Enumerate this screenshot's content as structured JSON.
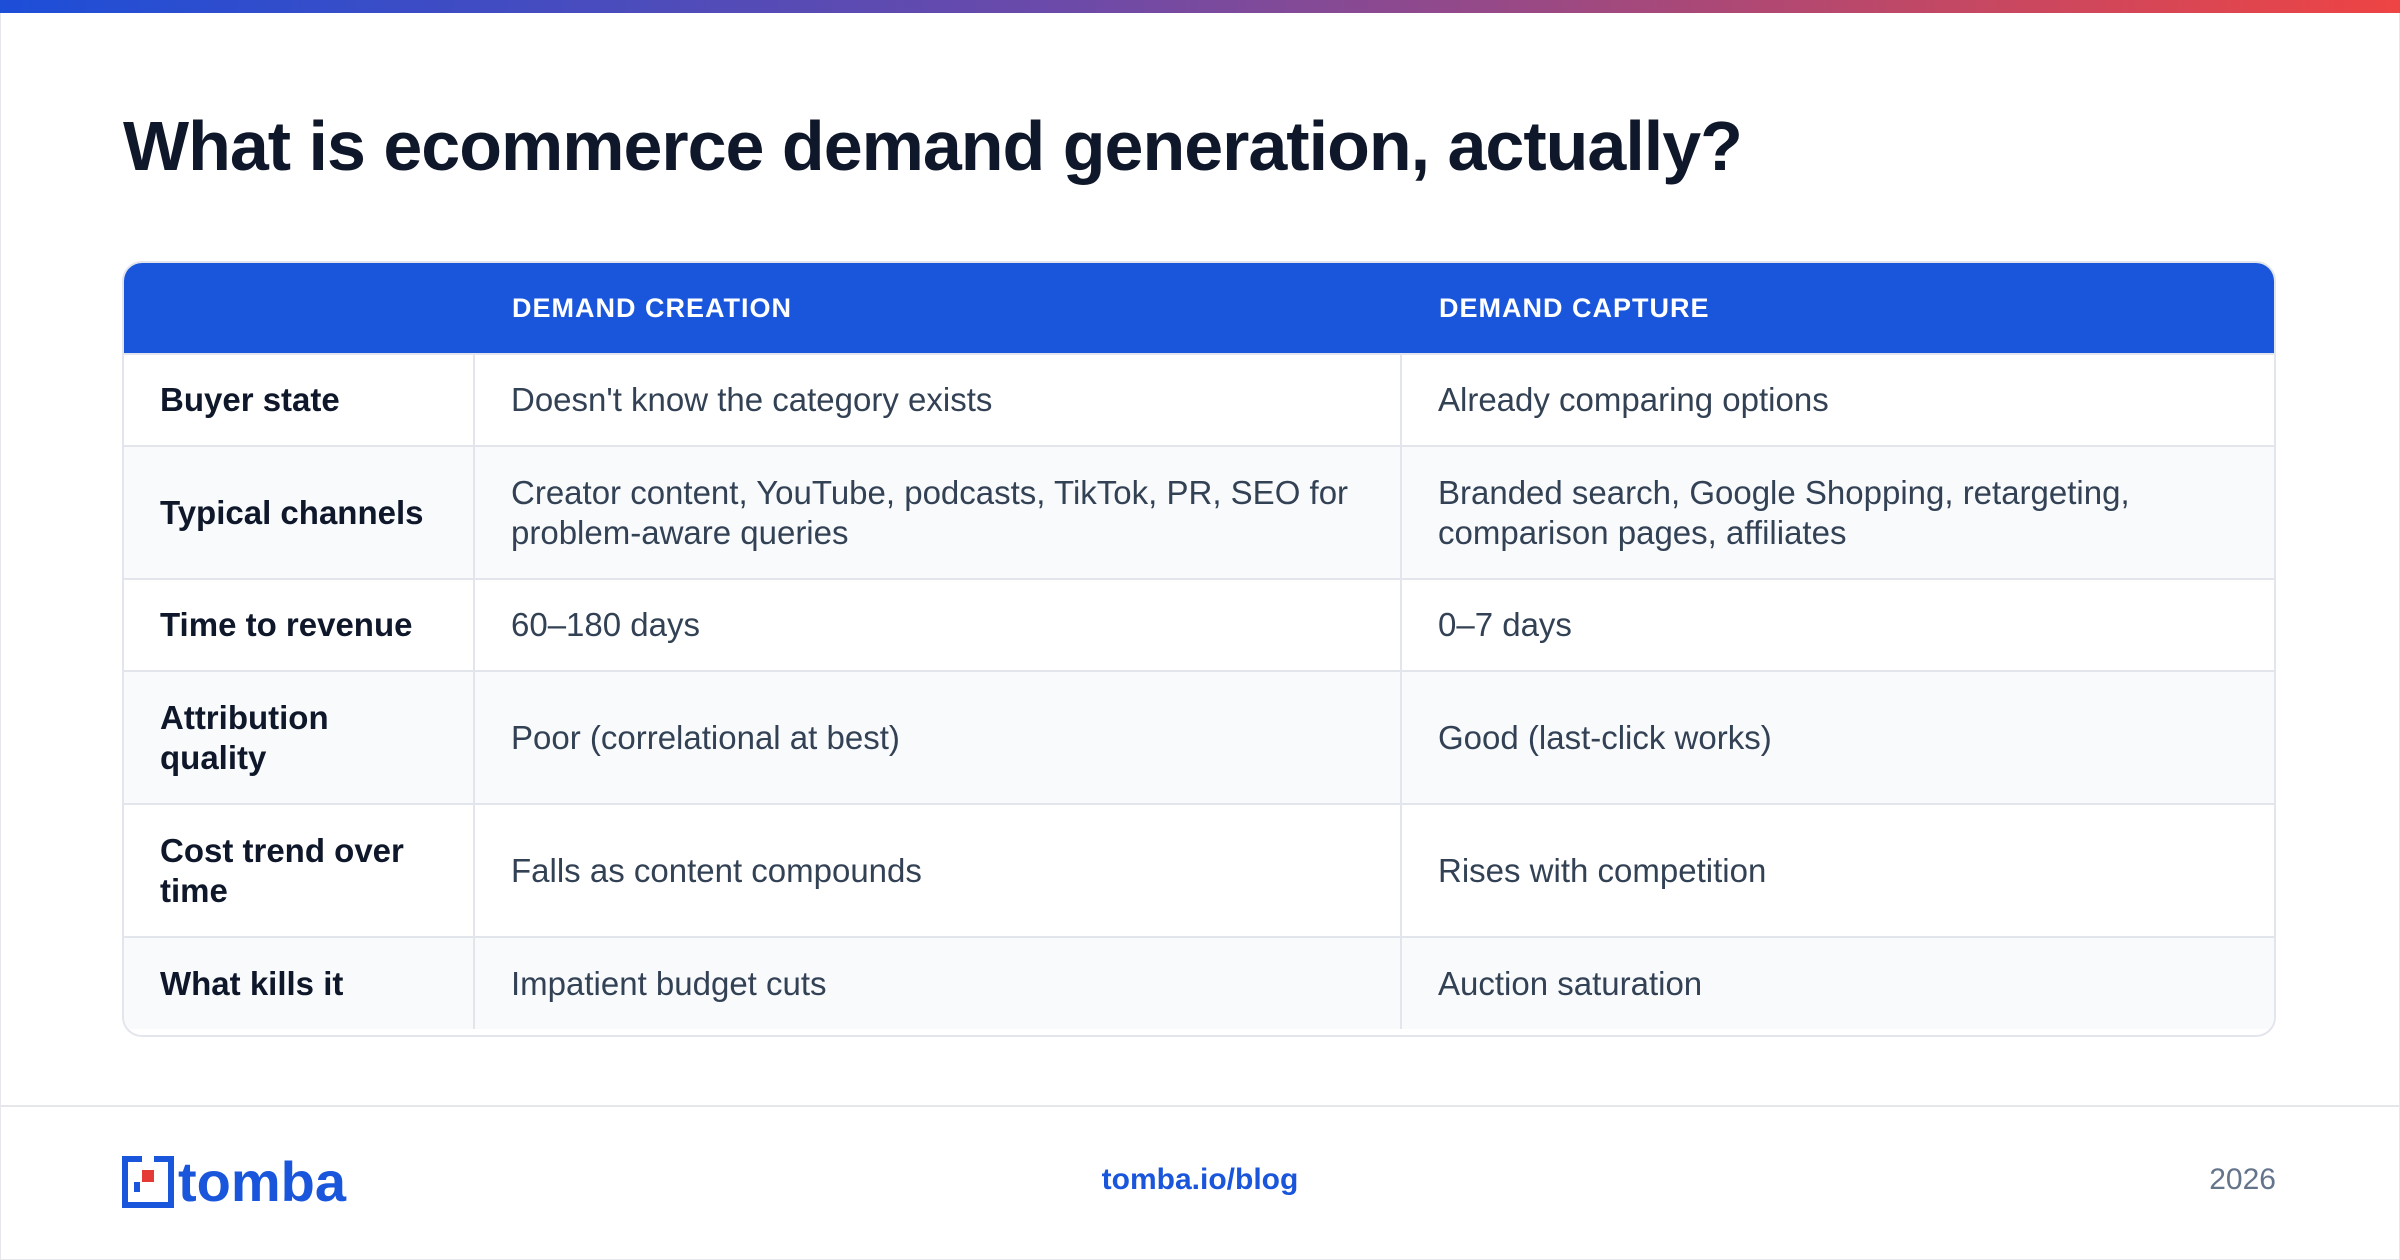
{
  "title": "What is ecommerce demand generation, actually?",
  "table": {
    "headers": [
      "",
      "DEMAND CREATION",
      "DEMAND CAPTURE"
    ],
    "rows": [
      {
        "label": "Buyer state",
        "creation": "Doesn't know the category exists",
        "capture": "Already comparing options"
      },
      {
        "label": "Typical channels",
        "creation": "Creator content, YouTube, podcasts, TikTok, PR, SEO for problem-aware queries",
        "capture": "Branded search, Google Shopping, retargeting, comparison pages, affiliates"
      },
      {
        "label": "Time to revenue",
        "creation": "60–180 days",
        "capture": "0–7 days"
      },
      {
        "label": "Attribution quality",
        "creation": "Poor (correlational at best)",
        "capture": "Good (last-click works)"
      },
      {
        "label": "Cost trend over time",
        "creation": "Falls as content compounds",
        "capture": "Rises with competition"
      },
      {
        "label": "What kills it",
        "creation": "Impatient budget cuts",
        "capture": "Auction saturation"
      }
    ]
  },
  "footer": {
    "logo_text": "tomba",
    "url": "tomba.io/blog",
    "year": "2026"
  },
  "colors": {
    "accent": "#1a56db",
    "gradient_start": "#1d4ed8",
    "gradient_end": "#ee4444",
    "logo_red": "#e53935"
  }
}
